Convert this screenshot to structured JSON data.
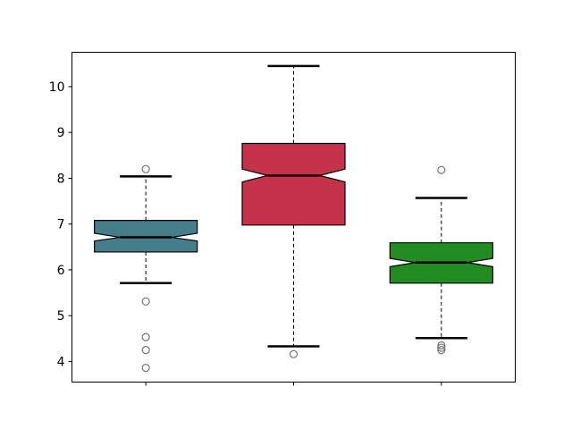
{
  "chart_data": {
    "type": "box",
    "notched": true,
    "title": "",
    "xlabel": "",
    "ylabel": "",
    "ylim": [
      3.55,
      10.75
    ],
    "yticks": [
      4,
      5,
      6,
      7,
      8,
      9,
      10
    ],
    "ytick_labels": [
      "4",
      "5",
      "6",
      "7",
      "8",
      "9",
      "10"
    ],
    "xtick_labels": [
      "",
      "",
      ""
    ],
    "grid": false,
    "boxes": [
      {
        "color": "#457d8b",
        "whisker_low": 5.71,
        "q1": 6.39,
        "notch_low": 6.63,
        "median": 6.71,
        "notch_high": 6.8,
        "q3": 7.08,
        "whisker_high": 8.04,
        "outliers": [
          8.2,
          5.31,
          4.53,
          4.25,
          3.86
        ]
      },
      {
        "color": "#c5334a",
        "whisker_low": 4.33,
        "q1": 6.98,
        "notch_low": 7.92,
        "median": 8.06,
        "notch_high": 8.2,
        "q3": 8.76,
        "whisker_high": 10.45,
        "outliers": [
          4.16
        ]
      },
      {
        "color": "#228b22",
        "whisker_low": 4.51,
        "q1": 5.71,
        "notch_low": 6.07,
        "median": 6.16,
        "notch_high": 6.25,
        "q3": 6.59,
        "whisker_high": 7.57,
        "outliers": [
          8.18,
          4.35,
          4.3,
          4.25
        ]
      }
    ]
  }
}
